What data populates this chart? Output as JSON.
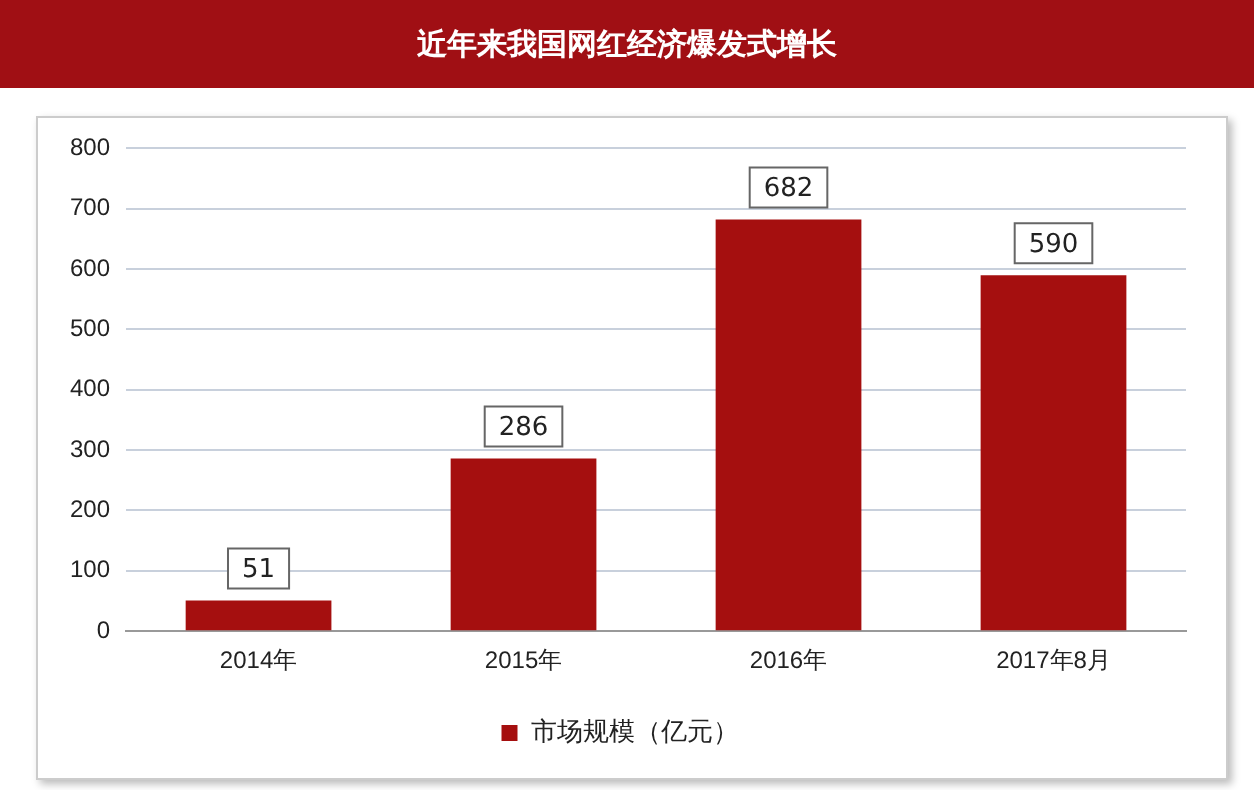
{
  "chart_data": {
    "type": "bar",
    "title": "近年来我国网红经济爆发式增长",
    "categories": [
      "2014年",
      "2015年",
      "2016年",
      "2017年8月"
    ],
    "series": [
      {
        "name": "市场规模（亿元）",
        "color": "#a50f0f",
        "values": [
          51,
          286,
          682,
          590
        ]
      }
    ],
    "ylim": [
      0,
      800
    ],
    "yticks": [
      0,
      100,
      200,
      300,
      400,
      500,
      600,
      700,
      800
    ],
    "grid": "y",
    "legend": "bottom",
    "data_labels": true
  }
}
